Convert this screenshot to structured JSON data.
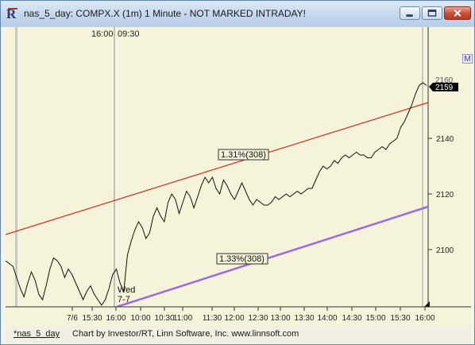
{
  "window": {
    "title": "nas_5_day: COMPX.X (1m) 1 Minute - NOT MARKED INTRADAY!",
    "icon": "R",
    "buttons": [
      "minimize-icon",
      "maximize-icon",
      "close-icon"
    ]
  },
  "chart": {
    "session_labels": [
      "16:00",
      "09:30"
    ],
    "x_ticks": [
      "7/6",
      "15:30",
      "16:00",
      "10:00",
      "10:30",
      "11:00",
      "11:30",
      "12:00",
      "12:30",
      "13:00",
      "13:30",
      "14:00",
      "14:30",
      "15:00",
      "15:30",
      "16:00"
    ],
    "y_ticks": [
      "2100",
      "2120",
      "2140"
    ],
    "last_price": "2159",
    "last_price_overlap": "2160",
    "channel_label_top": "1.31%(308)",
    "channel_label_bottom": "1.33%(308)",
    "day_label": [
      "Wed",
      "7-7"
    ],
    "m_button": "M",
    "colors": {
      "background": "#f5f3d9",
      "upper_channel": "#d62a1e",
      "lower_channel": "#9a6ae6",
      "price": "#111111"
    }
  },
  "chart_data": {
    "type": "line",
    "x_ticks": [
      "7/6",
      "15:30",
      "16:00",
      "10:00",
      "10:30",
      "11:00",
      "11:30",
      "12:00",
      "12:30",
      "13:00",
      "13:30",
      "14:00",
      "14:30",
      "15:00",
      "15:30",
      "16:00"
    ],
    "y_ticks": [
      2100,
      2120,
      2140
    ],
    "ylim": [
      2080,
      2170
    ],
    "last_value": 2159,
    "series": [
      {
        "values": [
          2096,
          2095,
          2094,
          2090,
          2086,
          2083,
          2088,
          2092,
          2089,
          2084,
          2082,
          2087,
          2093,
          2097,
          2096,
          2094,
          2090,
          2093,
          2091,
          2088,
          2085,
          2082,
          2085,
          2087,
          2084,
          2082,
          2080,
          2082,
          2086,
          2091,
          2093,
          2088,
          2085,
          2098,
          2103,
          2107,
          2110,
          2108,
          2104,
          2106,
          2112,
          2115,
          2112,
          2110,
          2117,
          2120,
          2118,
          2113,
          2117,
          2121,
          2119,
          2115,
          2119,
          2123,
          2126,
          2124,
          2126,
          2122,
          2120,
          2125,
          2123,
          2120,
          2118,
          2121,
          2124,
          2121,
          2118,
          2116,
          2118,
          2117,
          2116,
          2116,
          2117,
          2119,
          2118,
          2119,
          2120,
          2119,
          2120,
          2121,
          2120,
          2121,
          2122,
          2122,
          2125,
          2128,
          2130,
          2129,
          2130,
          2132,
          2131,
          2133,
          2134,
          2133,
          2134,
          2135,
          2134,
          2134,
          2133,
          2133,
          2135,
          2136,
          2137,
          2136,
          2138,
          2139,
          2140,
          2144,
          2146,
          2149,
          2152,
          2156,
          2159,
          2160,
          2159
        ]
      }
    ],
    "channels": [
      {
        "label": "1.31%(308)",
        "color": "#d62a1e"
      },
      {
        "label": "1.33%(308)",
        "color": "#9a6ae6"
      }
    ]
  },
  "status_bar": {
    "series_name": "*nas_5_day",
    "credit": "Chart by Investor/RT, Linn Software, Inc. www.linnsoft.com"
  }
}
